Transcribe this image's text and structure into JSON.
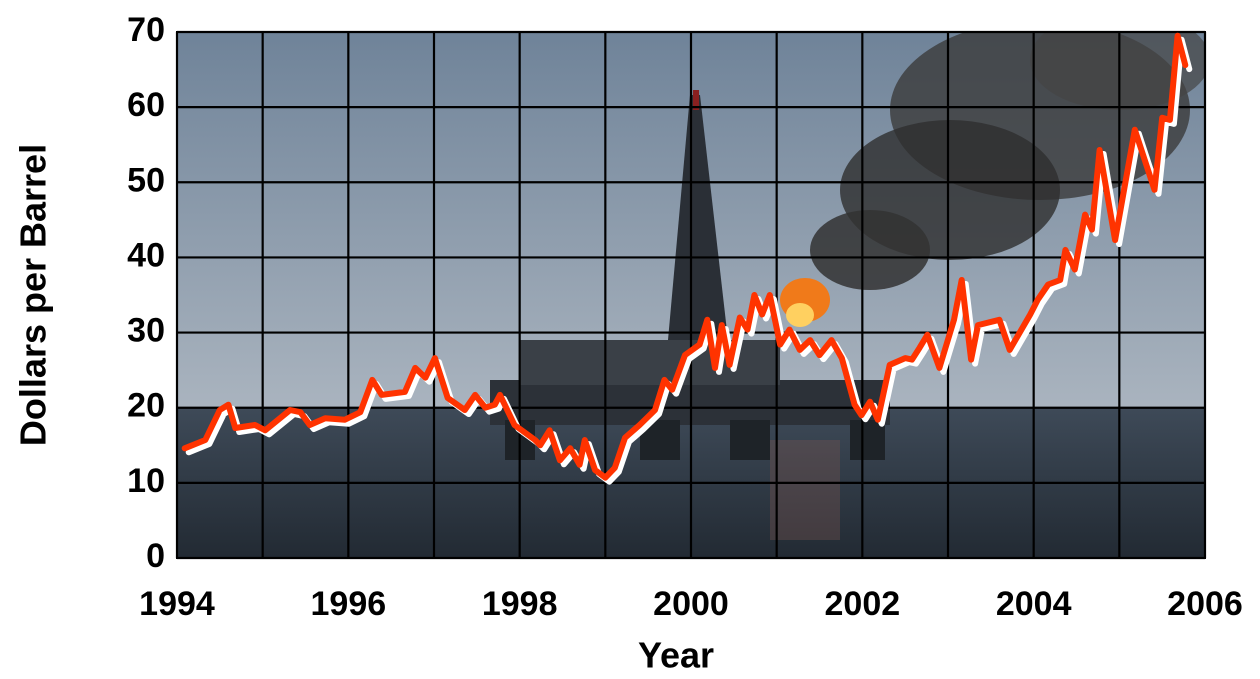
{
  "chart_data": {
    "type": "line",
    "xlabel": "Year",
    "ylabel": "Dollars per Barrel",
    "xlim": [
      1994,
      2006
    ],
    "ylim": [
      0,
      70
    ],
    "xticks": [
      1994,
      1996,
      1998,
      2000,
      2002,
      2004,
      2006
    ],
    "xminorticks": [
      1995,
      1997,
      1999,
      2001,
      2003,
      2005
    ],
    "yticks": [
      0,
      10,
      20,
      30,
      40,
      50,
      60,
      70
    ],
    "grid": true,
    "series": [
      {
        "color": "#ff3300",
        "x": [
          1994.09,
          1994.33,
          1994.5,
          1994.6,
          1994.68,
          1994.91,
          1995.03,
          1995.32,
          1995.44,
          1995.55,
          1995.73,
          1995.96,
          1996.14,
          1996.28,
          1996.39,
          1996.66,
          1996.78,
          1996.9,
          1997.01,
          1997.16,
          1997.36,
          1997.48,
          1997.6,
          1997.71,
          1997.77,
          1997.94,
          1998.18,
          1998.24,
          1998.35,
          1998.47,
          1998.59,
          1998.7,
          1998.76,
          1998.88,
          1999.0,
          1999.11,
          1999.23,
          1999.4,
          1999.58,
          1999.69,
          1999.78,
          1999.93,
          2000.1,
          2000.19,
          2000.28,
          2000.36,
          2000.45,
          2000.57,
          2000.66,
          2000.74,
          2000.83,
          2000.92,
          2001.04,
          2001.15,
          2001.27,
          2001.39,
          2001.5,
          2001.64,
          2001.76,
          2001.91,
          2001.99,
          2002.09,
          2002.18,
          2002.32,
          2002.5,
          2002.58,
          2002.67,
          2002.76,
          2002.9,
          2003.07,
          2003.16,
          2003.27,
          2003.35,
          2003.6,
          2003.72,
          2003.96,
          2004.05,
          2004.17,
          2004.31,
          2004.37,
          2004.48,
          2004.6,
          2004.68,
          2004.77,
          2004.95,
          2005.18,
          2005.41,
          2005.5,
          2005.59,
          2005.68,
          2005.77
        ],
        "values": [
          14.6,
          15.7,
          19.7,
          20.4,
          17.3,
          17.7,
          17,
          19.7,
          19.4,
          17.7,
          18.6,
          18.4,
          19.4,
          23.7,
          21.7,
          22.1,
          25.3,
          24,
          26.6,
          21.3,
          19.7,
          21.7,
          20,
          20.4,
          21.7,
          17.7,
          15.7,
          15,
          17,
          13,
          14.6,
          12.4,
          15.7,
          11.7,
          10.7,
          12,
          16,
          17.7,
          19.7,
          23.7,
          22.4,
          27,
          28.4,
          31.7,
          25.3,
          31,
          25.7,
          32,
          30.4,
          35,
          32.4,
          35,
          28.4,
          30.4,
          27.7,
          29,
          27,
          29,
          26.6,
          20.4,
          19,
          20.8,
          18.4,
          25.7,
          26.6,
          26.4,
          28,
          29.7,
          25.3,
          31.7,
          37,
          26.4,
          31,
          31.7,
          27.7,
          32.4,
          34.4,
          36.4,
          37,
          41,
          38.4,
          45.7,
          43.7,
          54.3,
          42.3,
          57,
          49,
          58.6,
          58.3,
          69.5,
          65.6
        ]
      }
    ]
  }
}
